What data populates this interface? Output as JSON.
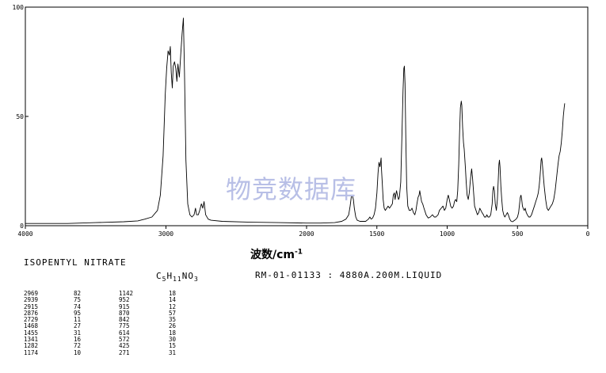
{
  "chart_data": {
    "type": "line",
    "title": "",
    "xlabel_base": "波数/cm",
    "xlabel_sup": "-1",
    "ylabel": "",
    "xlim": [
      4000,
      0
    ],
    "ylim": [
      0,
      100
    ],
    "x_ticks": [
      4000,
      3000,
      2000,
      1500,
      1000,
      500,
      0
    ],
    "x_tick_labels": [
      "4000",
      "3000",
      "2000",
      "1500",
      "1000",
      "500",
      "0"
    ],
    "y_ticks": [
      0,
      50,
      100
    ],
    "y_tick_labels": [
      "0",
      "50",
      "100"
    ],
    "grid": false,
    "points": [
      [
        4000,
        1
      ],
      [
        3700,
        1
      ],
      [
        3500,
        1.4
      ],
      [
        3300,
        1.8
      ],
      [
        3200,
        2.2
      ],
      [
        3150,
        3
      ],
      [
        3100,
        4
      ],
      [
        3060,
        7
      ],
      [
        3040,
        14
      ],
      [
        3020,
        32
      ],
      [
        3005,
        60
      ],
      [
        2995,
        72
      ],
      [
        2985,
        80
      ],
      [
        2975,
        78
      ],
      [
        2969,
        82
      ],
      [
        2962,
        70
      ],
      [
        2955,
        63
      ],
      [
        2948,
        73
      ],
      [
        2939,
        75
      ],
      [
        2930,
        72
      ],
      [
        2922,
        66
      ],
      [
        2915,
        74
      ],
      [
        2905,
        68
      ],
      [
        2895,
        78
      ],
      [
        2885,
        88
      ],
      [
        2876,
        95
      ],
      [
        2868,
        70
      ],
      [
        2858,
        30
      ],
      [
        2845,
        10
      ],
      [
        2830,
        5
      ],
      [
        2815,
        4
      ],
      [
        2800,
        5
      ],
      [
        2790,
        8
      ],
      [
        2782,
        5
      ],
      [
        2770,
        5
      ],
      [
        2760,
        7
      ],
      [
        2748,
        10
      ],
      [
        2738,
        8
      ],
      [
        2729,
        11
      ],
      [
        2718,
        5
      ],
      [
        2700,
        3
      ],
      [
        2680,
        2.5
      ],
      [
        2600,
        2
      ],
      [
        2400,
        1.6
      ],
      [
        2200,
        1.4
      ],
      [
        2000,
        1.2
      ],
      [
        1900,
        1.2
      ],
      [
        1800,
        1.4
      ],
      [
        1750,
        2
      ],
      [
        1720,
        3
      ],
      [
        1700,
        5
      ],
      [
        1690,
        9
      ],
      [
        1682,
        13
      ],
      [
        1675,
        14
      ],
      [
        1667,
        12
      ],
      [
        1660,
        8
      ],
      [
        1650,
        4
      ],
      [
        1640,
        2.5
      ],
      [
        1620,
        2
      ],
      [
        1580,
        2
      ],
      [
        1560,
        3
      ],
      [
        1550,
        4
      ],
      [
        1540,
        3
      ],
      [
        1530,
        3.5
      ],
      [
        1520,
        5
      ],
      [
        1510,
        8
      ],
      [
        1500,
        15
      ],
      [
        1492,
        24
      ],
      [
        1485,
        29
      ],
      [
        1478,
        27
      ],
      [
        1470,
        31
      ],
      [
        1468,
        27
      ],
      [
        1462,
        20
      ],
      [
        1455,
        12
      ],
      [
        1448,
        8
      ],
      [
        1440,
        7
      ],
      [
        1430,
        8
      ],
      [
        1420,
        9
      ],
      [
        1410,
        8
      ],
      [
        1400,
        9
      ],
      [
        1390,
        10
      ],
      [
        1383,
        14
      ],
      [
        1376,
        15
      ],
      [
        1370,
        12
      ],
      [
        1366,
        14
      ],
      [
        1360,
        16
      ],
      [
        1354,
        14
      ],
      [
        1346,
        12
      ],
      [
        1340,
        13
      ],
      [
        1330,
        20
      ],
      [
        1322,
        40
      ],
      [
        1314,
        62
      ],
      [
        1308,
        72
      ],
      [
        1304,
        73
      ],
      [
        1300,
        65
      ],
      [
        1294,
        40
      ],
      [
        1288,
        18
      ],
      [
        1280,
        9
      ],
      [
        1270,
        7
      ],
      [
        1260,
        7
      ],
      [
        1250,
        8
      ],
      [
        1240,
        6
      ],
      [
        1230,
        5
      ],
      [
        1222,
        7
      ],
      [
        1215,
        10
      ],
      [
        1207,
        13
      ],
      [
        1200,
        14
      ],
      [
        1195,
        16
      ],
      [
        1190,
        14
      ],
      [
        1182,
        11
      ],
      [
        1174,
        10
      ],
      [
        1165,
        8
      ],
      [
        1150,
        5
      ],
      [
        1135,
        3.5
      ],
      [
        1120,
        4
      ],
      [
        1105,
        5
      ],
      [
        1092,
        4
      ],
      [
        1080,
        4
      ],
      [
        1065,
        5
      ],
      [
        1055,
        7
      ],
      [
        1042,
        8
      ],
      [
        1030,
        9
      ],
      [
        1020,
        7
      ],
      [
        1010,
        8
      ],
      [
        1000,
        12
      ],
      [
        992,
        14
      ],
      [
        985,
        12
      ],
      [
        975,
        9
      ],
      [
        965,
        8
      ],
      [
        955,
        9
      ],
      [
        948,
        11
      ],
      [
        940,
        12
      ],
      [
        932,
        11
      ],
      [
        925,
        16
      ],
      [
        918,
        28
      ],
      [
        912,
        42
      ],
      [
        906,
        54
      ],
      [
        900,
        57
      ],
      [
        896,
        55
      ],
      [
        890,
        45
      ],
      [
        884,
        38
      ],
      [
        879,
        35
      ],
      [
        874,
        30
      ],
      [
        870,
        26
      ],
      [
        865,
        20
      ],
      [
        858,
        14
      ],
      [
        850,
        12
      ],
      [
        843,
        15
      ],
      [
        836,
        20
      ],
      [
        830,
        24
      ],
      [
        826,
        26
      ],
      [
        820,
        22
      ],
      [
        812,
        15
      ],
      [
        805,
        9
      ],
      [
        795,
        7
      ],
      [
        785,
        5
      ],
      [
        775,
        6
      ],
      [
        768,
        8
      ],
      [
        760,
        7
      ],
      [
        752,
        6
      ],
      [
        742,
        5
      ],
      [
        735,
        4
      ],
      [
        725,
        4
      ],
      [
        718,
        5
      ],
      [
        710,
        4
      ],
      [
        700,
        4
      ],
      [
        690,
        5
      ],
      [
        680,
        10
      ],
      [
        675,
        16
      ],
      [
        670,
        18
      ],
      [
        664,
        16
      ],
      [
        658,
        10
      ],
      [
        650,
        7
      ],
      [
        643,
        12
      ],
      [
        636,
        22
      ],
      [
        632,
        28
      ],
      [
        628,
        30
      ],
      [
        624,
        27
      ],
      [
        618,
        18
      ],
      [
        612,
        12
      ],
      [
        605,
        7
      ],
      [
        598,
        5
      ],
      [
        590,
        4
      ],
      [
        580,
        5
      ],
      [
        572,
        6
      ],
      [
        565,
        5
      ],
      [
        555,
        3
      ],
      [
        545,
        2
      ],
      [
        535,
        1.8
      ],
      [
        520,
        2.5
      ],
      [
        510,
        3
      ],
      [
        500,
        4
      ],
      [
        492,
        6
      ],
      [
        485,
        10
      ],
      [
        480,
        13
      ],
      [
        475,
        14
      ],
      [
        470,
        12
      ],
      [
        465,
        9
      ],
      [
        460,
        8
      ],
      [
        452,
        7
      ],
      [
        445,
        8
      ],
      [
        438,
        6
      ],
      [
        430,
        5
      ],
      [
        420,
        4
      ],
      [
        410,
        4
      ],
      [
        400,
        5
      ],
      [
        390,
        7
      ],
      [
        380,
        9
      ],
      [
        370,
        11
      ],
      [
        360,
        13
      ],
      [
        352,
        15
      ],
      [
        346,
        18
      ],
      [
        340,
        22
      ],
      [
        336,
        26
      ],
      [
        332,
        30
      ],
      [
        328,
        31
      ],
      [
        324,
        29
      ],
      [
        318,
        24
      ],
      [
        310,
        18
      ],
      [
        300,
        12
      ],
      [
        290,
        8
      ],
      [
        280,
        7
      ],
      [
        271,
        8
      ],
      [
        262,
        9
      ],
      [
        252,
        10
      ],
      [
        242,
        12
      ],
      [
        232,
        16
      ],
      [
        222,
        22
      ],
      [
        212,
        28
      ],
      [
        204,
        32
      ],
      [
        196,
        34
      ],
      [
        188,
        38
      ],
      [
        180,
        44
      ],
      [
        174,
        50
      ],
      [
        168,
        54
      ],
      [
        164,
        56
      ]
    ]
  },
  "watermark": "物竞数据库",
  "compound_name": "ISOPENTYL NITRATE",
  "formula": {
    "parts": [
      [
        "C",
        ""
      ],
      [
        "5",
        "sub"
      ],
      [
        "H",
        ""
      ],
      [
        "11",
        "sub"
      ],
      [
        "NO",
        ""
      ],
      [
        "3",
        "sub"
      ]
    ]
  },
  "ref_code": "RM-01-01133 : 4880A.200M.LIQUID",
  "peak_table_left": [
    [
      "2969",
      "82"
    ],
    [
      "2939",
      "75"
    ],
    [
      "2915",
      "74"
    ],
    [
      "2876",
      "95"
    ],
    [
      "2729",
      "11"
    ],
    [
      "1468",
      "27"
    ],
    [
      "1455",
      "31"
    ],
    [
      "1341",
      "16"
    ],
    [
      "1282",
      "72"
    ],
    [
      "1174",
      "10"
    ]
  ],
  "peak_table_right": [
    [
      "1142",
      "18"
    ],
    [
      "952",
      "14"
    ],
    [
      "915",
      "12"
    ],
    [
      "870",
      "57"
    ],
    [
      "842",
      "35"
    ],
    [
      "775",
      "26"
    ],
    [
      "614",
      "18"
    ],
    [
      "572",
      "30"
    ],
    [
      "425",
      "15"
    ],
    [
      "271",
      "31"
    ]
  ]
}
